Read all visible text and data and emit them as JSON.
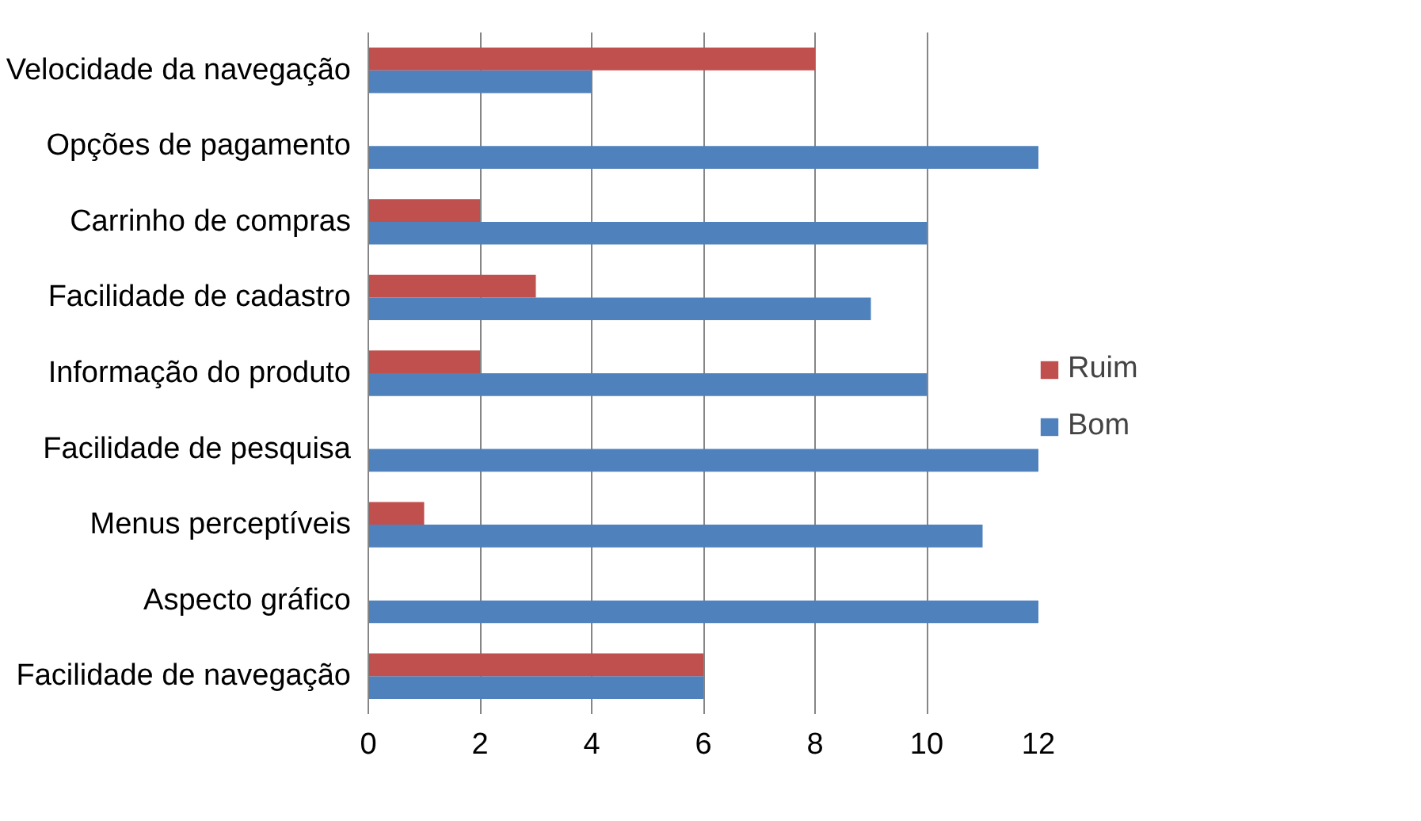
{
  "chart_data": {
    "type": "bar",
    "orientation": "horizontal",
    "categories": [
      "Velocidade da navegação",
      "Opções de pagamento",
      "Carrinho de compras",
      "Facilidade de cadastro",
      "Informação do produto",
      "Facilidade de pesquisa",
      "Menus perceptíveis",
      "Aspecto gráfico",
      "Facilidade de navegação"
    ],
    "series": [
      {
        "name": "Bom",
        "color": "#4f81bd",
        "values": [
          4,
          12,
          10,
          9,
          10,
          12,
          11,
          12,
          6
        ]
      },
      {
        "name": "Ruim",
        "color": "#c0504d",
        "values": [
          8,
          0,
          2,
          3,
          2,
          0,
          1,
          0,
          6
        ]
      }
    ],
    "xlim": [
      0,
      12
    ],
    "xticks": [
      0,
      2,
      4,
      6,
      8,
      10,
      12
    ],
    "grid": "x",
    "legend": "right"
  }
}
